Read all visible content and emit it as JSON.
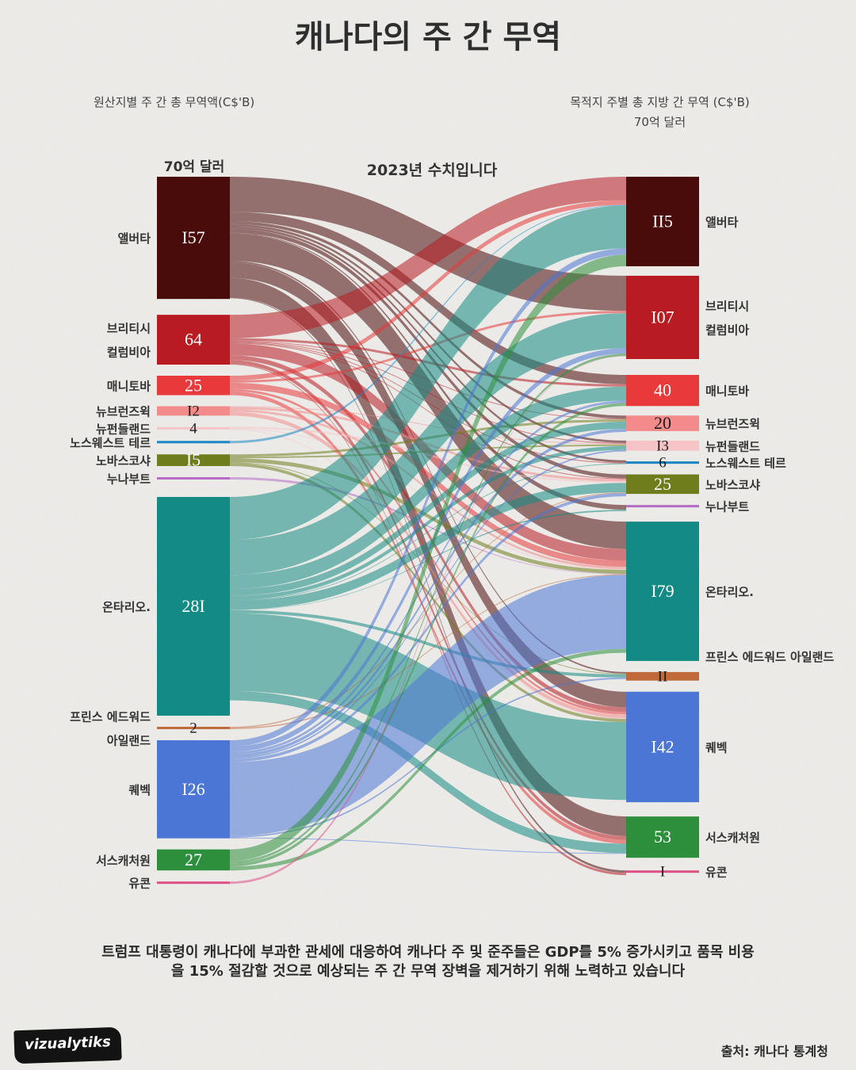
{
  "title": "캐나다의 주 간 무역",
  "left_axis_title": "원산지별 주 간 총 무역액(C$'B)",
  "right_axis_title": "목적지 주별 총 지방 간 무역 (C$'B)",
  "right_scale_label": "70억 달러",
  "left_scale_label": "70억 달러",
  "year_note": "2023년 수치입니다",
  "footnote": "트럼프 대통령이 캐나다에 부과한 관세에 대응하여 캐나다 주 및 준주들은 GDP를 5% 증가시키고 품목 비용을 15% 절감할 것으로 예상되는 주 간 무역 장벽을 제거하기 위해 노력하고 있습니다",
  "source": "출처: 캐나다 통계청",
  "brand": "vizualytiks",
  "chart_data": {
    "type": "sankey",
    "unit": "C$ billions",
    "sources": [
      {
        "id": "AB",
        "label_lines": [
          "앨버타"
        ],
        "value_label": "I57",
        "value": 157,
        "color": "#4a0b0b"
      },
      {
        "id": "BC",
        "label_lines": [
          "브리티시",
          "컬럼비아"
        ],
        "value_label": "64",
        "value": 64,
        "color": "#b81c22"
      },
      {
        "id": "MB",
        "label_lines": [
          "매니토바"
        ],
        "value_label": "25",
        "value": 25,
        "color": "#e8393b"
      },
      {
        "id": "NB",
        "label_lines": [
          "뉴브런즈윅"
        ],
        "value_label": "I2",
        "value": 12,
        "color": "#f38b8b"
      },
      {
        "id": "NL",
        "label_lines": [
          "뉴펀들랜드"
        ],
        "value_label": "4",
        "value": 4,
        "color": "#f6c4c7"
      },
      {
        "id": "NT",
        "label_lines": [
          "노스웨스트 테르"
        ],
        "value_label": "",
        "value": 1,
        "color": "#1a86c4"
      },
      {
        "id": "NS",
        "label_lines": [
          "노바스코샤"
        ],
        "value_label": "I5",
        "value": 15,
        "color": "#6f7d1c"
      },
      {
        "id": "NU",
        "label_lines": [
          "누나부트"
        ],
        "value_label": "",
        "value": 0.5,
        "color": "#b56cc6"
      },
      {
        "id": "ON",
        "label_lines": [
          "온타리오."
        ],
        "value_label": "28I",
        "value": 281,
        "color": "#148a84"
      },
      {
        "id": "PE",
        "label_lines": [
          "프린스 에드워드",
          "아일랜드"
        ],
        "value_label": "2",
        "value": 2,
        "color": "#c06a3a"
      },
      {
        "id": "QC",
        "label_lines": [
          "퀘벡"
        ],
        "value_label": "I26",
        "value": 126,
        "color": "#4b76d6"
      },
      {
        "id": "SK",
        "label_lines": [
          "서스캐처원"
        ],
        "value_label": "27",
        "value": 27,
        "color": "#2d8f3c"
      },
      {
        "id": "YT",
        "label_lines": [
          "유콘"
        ],
        "value_label": "",
        "value": 0.3,
        "color": "#dd4f86"
      }
    ],
    "targets": [
      {
        "id": "AB",
        "label_lines": [
          "앨버타"
        ],
        "value_label": "II5",
        "value": 115,
        "color": "#4a0b0b"
      },
      {
        "id": "BC",
        "label_lines": [
          "브리티시",
          "컬럼비아"
        ],
        "value_label": "I07",
        "value": 107,
        "color": "#b81c22"
      },
      {
        "id": "MB",
        "label_lines": [
          "매니토바"
        ],
        "value_label": "40",
        "value": 40,
        "color": "#e8393b"
      },
      {
        "id": "NB",
        "label_lines": [
          "뉴브런즈윅"
        ],
        "value_label": "20",
        "value": 20,
        "color": "#f38b8b"
      },
      {
        "id": "NL",
        "label_lines": [
          "뉴펀들랜드"
        ],
        "value_label": "I3",
        "value": 13,
        "color": "#f6c4c7"
      },
      {
        "id": "NT",
        "label_lines": [
          "노스웨스트 테르"
        ],
        "value_label": "6",
        "value": 6,
        "color": "#1a86c4"
      },
      {
        "id": "NS",
        "label_lines": [
          "노바스코샤"
        ],
        "value_label": "25",
        "value": 25,
        "color": "#6f7d1c"
      },
      {
        "id": "NU",
        "label_lines": [
          "누나부트"
        ],
        "value_label": "",
        "value": 0.5,
        "color": "#b56cc6"
      },
      {
        "id": "ON",
        "label_lines": [
          "온타리오."
        ],
        "value_label": "I79",
        "value": 179,
        "color": "#148a84"
      },
      {
        "id": "PE",
        "label_lines": [
          "프린스 에드워드 아일랜드"
        ],
        "value_label": "II",
        "value": 11,
        "color": "#c06a3a"
      },
      {
        "id": "QC",
        "label_lines": [
          "퀘벡"
        ],
        "value_label": "I42",
        "value": 142,
        "color": "#4b76d6"
      },
      {
        "id": "SK",
        "label_lines": [
          "서스캐처원"
        ],
        "value_label": "53",
        "value": 53,
        "color": "#2d8f3c"
      },
      {
        "id": "YT",
        "label_lines": [
          "유콘"
        ],
        "value_label": "I",
        "value": 1,
        "color": "#dd4f86"
      }
    ],
    "flows": [
      {
        "from": "AB",
        "to": "BC",
        "value": 45
      },
      {
        "from": "AB",
        "to": "ON",
        "value": 35
      },
      {
        "from": "AB",
        "to": "SK",
        "value": 25
      },
      {
        "from": "AB",
        "to": "QC",
        "value": 20
      },
      {
        "from": "AB",
        "to": "MB",
        "value": 12
      },
      {
        "from": "AB",
        "to": "NS",
        "value": 5
      },
      {
        "from": "AB",
        "to": "NT",
        "value": 3
      },
      {
        "from": "AB",
        "to": "NB",
        "value": 4
      },
      {
        "from": "AB",
        "to": "NL",
        "value": 3
      },
      {
        "from": "AB",
        "to": "PE",
        "value": 2
      },
      {
        "from": "AB",
        "to": "NU",
        "value": 1
      },
      {
        "from": "AB",
        "to": "YT",
        "value": 1
      },
      {
        "from": "BC",
        "to": "AB",
        "value": 30
      },
      {
        "from": "BC",
        "to": "ON",
        "value": 15
      },
      {
        "from": "BC",
        "to": "QC",
        "value": 6
      },
      {
        "from": "BC",
        "to": "SK",
        "value": 5
      },
      {
        "from": "BC",
        "to": "MB",
        "value": 3
      },
      {
        "from": "BC",
        "to": "NB",
        "value": 1
      },
      {
        "from": "BC",
        "to": "NS",
        "value": 1
      },
      {
        "from": "BC",
        "to": "NL",
        "value": 1
      },
      {
        "from": "BC",
        "to": "NT",
        "value": 1
      },
      {
        "from": "BC",
        "to": "YT",
        "value": 1
      },
      {
        "from": "MB",
        "to": "AB",
        "value": 6
      },
      {
        "from": "MB",
        "to": "ON",
        "value": 8
      },
      {
        "from": "MB",
        "to": "SK",
        "value": 5
      },
      {
        "from": "MB",
        "to": "BC",
        "value": 3
      },
      {
        "from": "MB",
        "to": "QC",
        "value": 3
      },
      {
        "from": "NB",
        "to": "QC",
        "value": 5
      },
      {
        "from": "NB",
        "to": "ON",
        "value": 3
      },
      {
        "from": "NB",
        "to": "NS",
        "value": 3
      },
      {
        "from": "NB",
        "to": "NL",
        "value": 1
      },
      {
        "from": "NL",
        "to": "NS",
        "value": 2
      },
      {
        "from": "NL",
        "to": "ON",
        "value": 1
      },
      {
        "from": "NL",
        "to": "QC",
        "value": 1
      },
      {
        "from": "NT",
        "to": "AB",
        "value": 1
      },
      {
        "from": "NS",
        "to": "ON",
        "value": 5
      },
      {
        "from": "NS",
        "to": "QC",
        "value": 4
      },
      {
        "from": "NS",
        "to": "NB",
        "value": 3
      },
      {
        "from": "NS",
        "to": "NL",
        "value": 2
      },
      {
        "from": "NS",
        "to": "PE",
        "value": 1
      },
      {
        "from": "NU",
        "to": "ON",
        "value": 0.5
      },
      {
        "from": "ON",
        "to": "QC",
        "value": 100
      },
      {
        "from": "ON",
        "to": "BC",
        "value": 45
      },
      {
        "from": "ON",
        "to": "AB",
        "value": 55
      },
      {
        "from": "ON",
        "to": "MB",
        "value": 18
      },
      {
        "from": "ON",
        "to": "SK",
        "value": 12
      },
      {
        "from": "ON",
        "to": "NS",
        "value": 12
      },
      {
        "from": "ON",
        "to": "NB",
        "value": 9
      },
      {
        "from": "ON",
        "to": "NL",
        "value": 5
      },
      {
        "from": "ON",
        "to": "PE",
        "value": 4
      },
      {
        "from": "ON",
        "to": "NT",
        "value": 1
      },
      {
        "from": "ON",
        "to": "NU",
        "value": 0.3
      },
      {
        "from": "PE",
        "to": "ON",
        "value": 1
      },
      {
        "from": "PE",
        "to": "NS",
        "value": 1
      },
      {
        "from": "QC",
        "to": "ON",
        "value": 95
      },
      {
        "from": "QC",
        "to": "AB",
        "value": 8
      },
      {
        "from": "QC",
        "to": "BC",
        "value": 7
      },
      {
        "from": "QC",
        "to": "NB",
        "value": 4
      },
      {
        "from": "QC",
        "to": "NS",
        "value": 4
      },
      {
        "from": "QC",
        "to": "MB",
        "value": 3
      },
      {
        "from": "QC",
        "to": "PE",
        "value": 2
      },
      {
        "from": "QC",
        "to": "NL",
        "value": 2
      },
      {
        "from": "QC",
        "to": "SK",
        "value": 1
      },
      {
        "from": "SK",
        "to": "AB",
        "value": 15
      },
      {
        "from": "SK",
        "to": "ON",
        "value": 5
      },
      {
        "from": "SK",
        "to": "MB",
        "value": 4
      },
      {
        "from": "SK",
        "to": "BC",
        "value": 3
      },
      {
        "from": "YT",
        "to": "BC",
        "value": 0.3
      }
    ]
  }
}
